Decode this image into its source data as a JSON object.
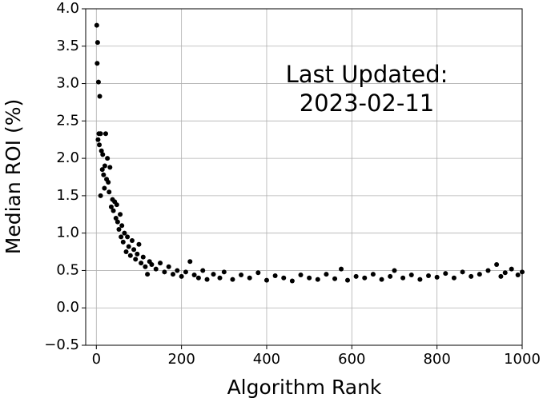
{
  "chart_data": {
    "type": "scatter",
    "xlabel": "Algorithm Rank",
    "ylabel": "Median ROI (%)",
    "annotation": [
      "Last Updated:",
      "2023-02-11"
    ],
    "color": "#000000",
    "grid": true,
    "xlim": [
      -25,
      1000
    ],
    "ylim": [
      -0.5,
      4.0
    ],
    "xticks": [
      0,
      200,
      400,
      600,
      800,
      1000
    ],
    "yticks": [
      {
        "value": -0.5,
        "label": "−0.5"
      },
      {
        "value": 0,
        "label": "0.0"
      },
      0.5,
      {
        "value": 1,
        "label": "1.0"
      },
      1.5,
      {
        "value": 2,
        "label": "2.0"
      },
      2.5,
      {
        "value": 3,
        "label": "3.0"
      },
      3.5,
      {
        "value": 4,
        "label": "4.0"
      }
    ],
    "x": [
      1,
      3,
      2,
      5,
      8,
      4,
      6,
      7,
      10,
      12,
      14,
      15,
      17,
      19,
      20,
      22,
      24,
      26,
      28,
      30,
      10,
      32,
      35,
      38,
      40,
      43,
      46,
      48,
      50,
      53,
      56,
      58,
      60,
      63,
      66,
      70,
      73,
      76,
      80,
      84,
      88,
      92,
      96,
      100,
      105,
      110,
      115,
      120,
      125,
      130,
      140,
      150,
      160,
      170,
      180,
      190,
      200,
      210,
      220,
      230,
      240,
      250,
      260,
      275,
      290,
      300,
      320,
      340,
      360,
      380,
      400,
      420,
      440,
      460,
      480,
      500,
      520,
      540,
      560,
      575,
      590,
      610,
      630,
      650,
      670,
      690,
      700,
      720,
      740,
      760,
      780,
      800,
      820,
      840,
      860,
      880,
      900,
      920,
      940,
      950,
      960,
      975,
      990,
      1000
    ],
    "values": [
      3.78,
      3.55,
      3.27,
      3.02,
      2.83,
      2.25,
      2.33,
      2.18,
      2.33,
      2.1,
      1.85,
      2.05,
      1.78,
      1.6,
      1.9,
      2.33,
      1.72,
      2.0,
      1.68,
      1.55,
      1.5,
      1.88,
      1.35,
      1.45,
      1.3,
      1.42,
      1.2,
      1.38,
      1.15,
      1.05,
      1.25,
      0.95,
      1.1,
      0.88,
      1.0,
      0.75,
      0.95,
      0.82,
      0.7,
      0.9,
      0.78,
      0.65,
      0.72,
      0.85,
      0.6,
      0.68,
      0.55,
      0.45,
      0.62,
      0.58,
      0.52,
      0.6,
      0.48,
      0.55,
      0.45,
      0.5,
      0.42,
      0.48,
      0.62,
      0.44,
      0.4,
      0.5,
      0.38,
      0.45,
      0.4,
      0.48,
      0.38,
      0.44,
      0.4,
      0.47,
      0.37,
      0.43,
      0.4,
      0.36,
      0.44,
      0.4,
      0.38,
      0.45,
      0.39,
      0.52,
      0.37,
      0.42,
      0.4,
      0.45,
      0.38,
      0.42,
      0.5,
      0.4,
      0.44,
      0.38,
      0.43,
      0.41,
      0.46,
      0.4,
      0.48,
      0.42,
      0.45,
      0.5,
      0.58,
      0.42,
      0.47,
      0.52,
      0.44,
      0.48
    ]
  }
}
